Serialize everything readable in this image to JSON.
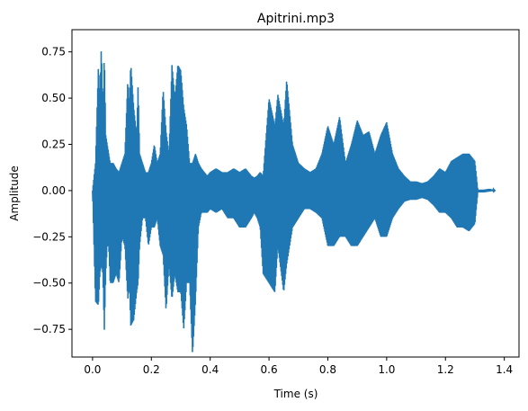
{
  "chart_data": {
    "type": "line",
    "title": "Apitrini.mp3",
    "xlabel": "Time (s)",
    "ylabel": "Amplitude",
    "xlim": [
      -0.07,
      1.45
    ],
    "ylim": [
      -0.9,
      0.87
    ],
    "xticks": [
      0.0,
      0.2,
      0.4,
      0.6,
      0.8,
      1.0,
      1.2,
      1.4
    ],
    "xtick_labels": [
      "0.0",
      "0.2",
      "0.4",
      "0.6",
      "0.8",
      "1.0",
      "1.2",
      "1.4"
    ],
    "yticks": [
      -0.75,
      -0.5,
      -0.25,
      0.0,
      0.25,
      0.5,
      0.75
    ],
    "ytick_labels": [
      "−0.75",
      "−0.50",
      "−0.25",
      "0.00",
      "0.25",
      "0.50",
      "0.75"
    ],
    "grid": false,
    "color": "#1f77b4",
    "series": [
      {
        "t": [
          0.0,
          0.01,
          0.02,
          0.025,
          0.03,
          0.035,
          0.04,
          0.045,
          0.05,
          0.055,
          0.06,
          0.07,
          0.08,
          0.09,
          0.1,
          0.11,
          0.12,
          0.125,
          0.13,
          0.14,
          0.15,
          0.155,
          0.16,
          0.17,
          0.18,
          0.19,
          0.2,
          0.21,
          0.22,
          0.23,
          0.24,
          0.25,
          0.26,
          0.27,
          0.28,
          0.29,
          0.3,
          0.31,
          0.32,
          0.33,
          0.34,
          0.35,
          0.36,
          0.37,
          0.38,
          0.39,
          0.4,
          0.42,
          0.44,
          0.46,
          0.48,
          0.5,
          0.52,
          0.54,
          0.55,
          0.56,
          0.57,
          0.58,
          0.6,
          0.62,
          0.63,
          0.65,
          0.66,
          0.68,
          0.7,
          0.72,
          0.74,
          0.76,
          0.78,
          0.8,
          0.82,
          0.84,
          0.86,
          0.88,
          0.9,
          0.92,
          0.94,
          0.96,
          0.98,
          1.0,
          1.02,
          1.04,
          1.06,
          1.08,
          1.1,
          1.12,
          1.14,
          1.16,
          1.18,
          1.2,
          1.22,
          1.24,
          1.26,
          1.28,
          1.3,
          1.31,
          1.33,
          1.35,
          1.37
        ],
        "max": [
          0.0,
          0.15,
          0.68,
          0.5,
          0.79,
          0.4,
          0.75,
          0.3,
          0.25,
          0.2,
          0.15,
          0.15,
          0.12,
          0.1,
          0.15,
          0.2,
          0.6,
          0.45,
          0.69,
          0.45,
          0.3,
          0.58,
          0.2,
          0.15,
          0.1,
          0.1,
          0.15,
          0.25,
          0.15,
          0.2,
          0.55,
          0.32,
          0.2,
          0.68,
          0.5,
          0.68,
          0.65,
          0.45,
          0.35,
          0.15,
          0.15,
          0.2,
          0.15,
          0.12,
          0.1,
          0.08,
          0.1,
          0.12,
          0.1,
          0.1,
          0.12,
          0.1,
          0.12,
          0.08,
          0.07,
          0.08,
          0.1,
          0.08,
          0.5,
          0.35,
          0.52,
          0.35,
          0.6,
          0.25,
          0.15,
          0.12,
          0.1,
          0.12,
          0.2,
          0.35,
          0.25,
          0.4,
          0.15,
          0.25,
          0.38,
          0.3,
          0.32,
          0.2,
          0.3,
          0.37,
          0.2,
          0.12,
          0.08,
          0.05,
          0.05,
          0.04,
          0.05,
          0.08,
          0.12,
          0.1,
          0.16,
          0.18,
          0.2,
          0.2,
          0.16,
          0.005,
          0.005,
          0.01,
          0.0
        ],
        "min": [
          0.0,
          -0.6,
          -0.62,
          -0.45,
          -0.4,
          -0.45,
          -0.76,
          -0.45,
          -0.3,
          -0.3,
          -0.5,
          -0.5,
          -0.45,
          -0.5,
          -0.25,
          -0.3,
          -0.59,
          -0.5,
          -0.73,
          -0.7,
          -0.55,
          -0.5,
          -0.3,
          -0.15,
          -0.15,
          -0.3,
          -0.2,
          -0.2,
          -0.15,
          -0.3,
          -0.35,
          -0.65,
          -0.4,
          -0.59,
          -0.45,
          -0.55,
          -0.55,
          -0.75,
          -0.5,
          -0.5,
          -0.89,
          -0.6,
          -0.2,
          -0.12,
          -0.12,
          -0.12,
          -0.1,
          -0.12,
          -0.1,
          -0.15,
          -0.15,
          -0.2,
          -0.2,
          -0.15,
          -0.12,
          -0.15,
          -0.2,
          -0.45,
          -0.5,
          -0.55,
          -0.3,
          -0.55,
          -0.4,
          -0.2,
          -0.15,
          -0.1,
          -0.1,
          -0.12,
          -0.15,
          -0.3,
          -0.3,
          -0.25,
          -0.25,
          -0.3,
          -0.3,
          -0.25,
          -0.2,
          -0.15,
          -0.25,
          -0.25,
          -0.15,
          -0.1,
          -0.06,
          -0.05,
          -0.05,
          -0.04,
          -0.05,
          -0.08,
          -0.12,
          -0.12,
          -0.15,
          -0.2,
          -0.2,
          -0.22,
          -0.18,
          -0.01,
          -0.01,
          -0.005,
          0.0
        ]
      }
    ]
  }
}
